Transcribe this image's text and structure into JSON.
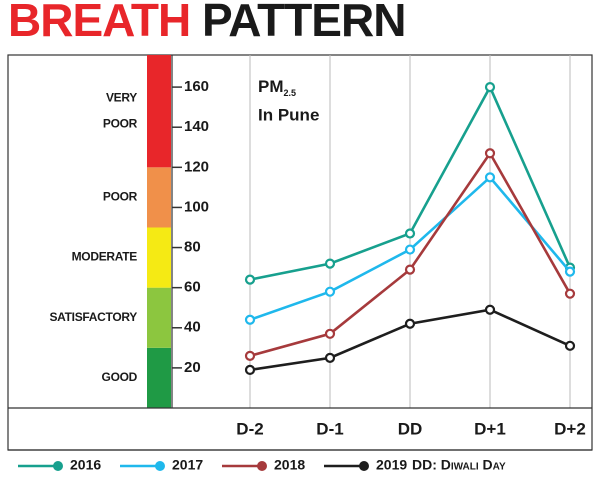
{
  "chart_data": {
    "type": "line",
    "title": [
      "BREATH",
      "PATTERN"
    ],
    "annotation": {
      "text": "PM",
      "sub": "2.5",
      "line2": "In Pune"
    },
    "note": "DD: Diwali Day",
    "categories": [
      "D-2",
      "D-1",
      "DD",
      "D+1",
      "D+2"
    ],
    "series": [
      {
        "name": "2016",
        "color": "#17a08e",
        "values": [
          64,
          72,
          87,
          160,
          70
        ]
      },
      {
        "name": "2017",
        "color": "#1fb8ec",
        "values": [
          44,
          58,
          79,
          115,
          68
        ]
      },
      {
        "name": "2018",
        "color": "#a63a3c",
        "values": [
          26,
          37,
          69,
          127,
          57
        ]
      },
      {
        "name": "2019",
        "color": "#1e1e1e",
        "values": [
          19,
          25,
          42,
          49,
          31
        ]
      }
    ],
    "bands": [
      {
        "from": 0,
        "label": [
          "GOOD"
        ],
        "color": "#1f9a45"
      },
      {
        "from": 30,
        "label": [
          "SATISFACTORY"
        ],
        "color": "#8cc63f"
      },
      {
        "from": 60,
        "label": [
          "MODERATE"
        ],
        "color": "#f5ea14"
      },
      {
        "from": 90,
        "label": [
          "POOR"
        ],
        "color": "#f0904a"
      },
      {
        "from": 120,
        "label": [
          "VERY",
          "POOR"
        ],
        "color": "#e8262a"
      }
    ],
    "ylim": [
      0,
      176
    ],
    "yticks": [
      20,
      40,
      60,
      80,
      100,
      120,
      140,
      160
    ],
    "grid": true
  }
}
